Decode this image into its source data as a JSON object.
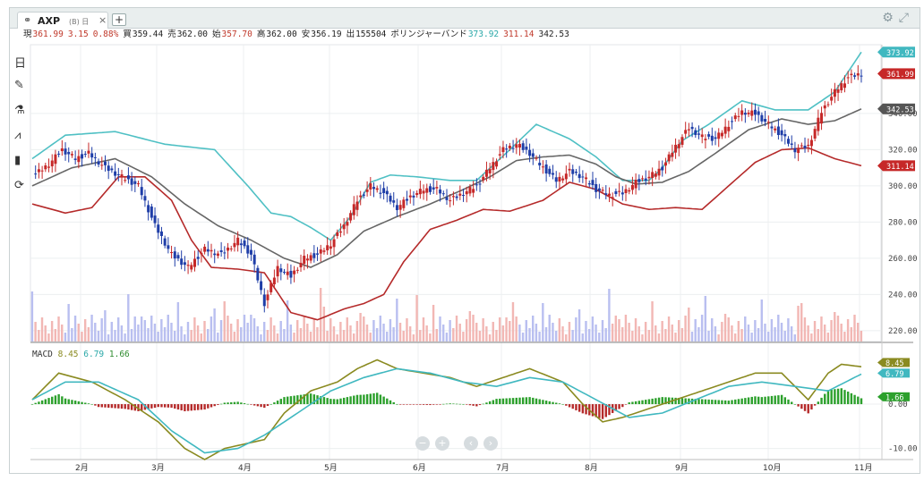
{
  "tab": {
    "symbol": "AXP",
    "suffix": "(B) 日",
    "close": "×",
    "add": "+"
  },
  "top_icons": {
    "settings": "gear-icon",
    "fullscreen": "expand-icon"
  },
  "infobar": [
    {
      "label": "現",
      "value": "361.99",
      "color": "red"
    },
    {
      "label": "",
      "value": "3.15",
      "color": "red"
    },
    {
      "label": "",
      "value": "0.88%",
      "color": "red"
    },
    {
      "label": "買",
      "value": "359.44",
      "color": ""
    },
    {
      "label": "売",
      "value": "362.00",
      "color": ""
    },
    {
      "label": "始",
      "value": "357.70",
      "color": "red"
    },
    {
      "label": "高",
      "value": "362.00",
      "color": ""
    },
    {
      "label": "安",
      "value": "356.19",
      "color": ""
    },
    {
      "label": "出",
      "value": "155504",
      "color": ""
    },
    {
      "label": "ボリンジャーバンド",
      "value": "373.92",
      "color": "teal"
    },
    {
      "label": "",
      "value": "311.14",
      "color": "red"
    },
    {
      "label": "",
      "value": "342.53",
      "color": ""
    }
  ],
  "toolbar": [
    {
      "name": "timeframe-icon",
      "glyph": "日"
    },
    {
      "name": "draw-icon",
      "glyph": "✎"
    },
    {
      "name": "indicator-flask-icon",
      "glyph": "⚗"
    },
    {
      "name": "chart-type-icon",
      "glyph": "⩘"
    },
    {
      "name": "bar-chart-icon",
      "glyph": "▮"
    },
    {
      "name": "refresh-icon",
      "glyph": "⟳"
    }
  ],
  "macd_label": {
    "name": "MACD",
    "v1": "8.45",
    "v2": "6.79",
    "v3": "1.66"
  },
  "nav": {
    "zoom_out": "−",
    "zoom_in": "+",
    "prev": "‹",
    "next": "›"
  },
  "chart_data": [
    {
      "type": "candlestick",
      "symbol": "AXP",
      "x_ticks": [
        "2月",
        "3月",
        "4月",
        "5月",
        "6月",
        "7月",
        "8月",
        "9月",
        "10月",
        "11月"
      ],
      "y_ticks": [
        220,
        240,
        260,
        280,
        300,
        320,
        340
      ],
      "ylim": [
        214,
        378
      ],
      "right_labels": [
        {
          "value": 373.92,
          "text": "373.92",
          "color": "#40b8c0"
        },
        {
          "value": 361.99,
          "text": "361.99",
          "color": "#c62828"
        },
        {
          "value": 342.53,
          "text": "342.53",
          "color": "#555555"
        },
        {
          "value": 311.14,
          "text": "311.14",
          "color": "#c62828"
        }
      ],
      "price_anchor": [
        [
          0,
          305
        ],
        [
          5,
          312
        ],
        [
          9,
          320
        ],
        [
          13,
          315
        ],
        [
          17,
          318
        ],
        [
          22,
          310
        ],
        [
          27,
          305
        ],
        [
          32,
          300
        ],
        [
          37,
          278
        ],
        [
          42,
          262
        ],
        [
          47,
          255
        ],
        [
          52,
          265
        ],
        [
          57,
          262
        ],
        [
          62,
          270
        ],
        [
          66,
          262
        ],
        [
          70,
          235
        ],
        [
          74,
          255
        ],
        [
          78,
          250
        ],
        [
          82,
          260
        ],
        [
          86,
          262
        ],
        [
          90,
          268
        ],
        [
          94,
          278
        ],
        [
          98,
          292
        ],
        [
          102,
          300
        ],
        [
          106,
          296
        ],
        [
          110,
          288
        ],
        [
          114,
          294
        ],
        [
          118,
          298
        ],
        [
          122,
          298
        ],
        [
          126,
          292
        ],
        [
          130,
          296
        ],
        [
          134,
          300
        ],
        [
          138,
          310
        ],
        [
          142,
          320
        ],
        [
          146,
          323
        ],
        [
          150,
          318
        ],
        [
          154,
          310
        ],
        [
          158,
          303
        ],
        [
          162,
          308
        ],
        [
          166,
          305
        ],
        [
          170,
          298
        ],
        [
          174,
          295
        ],
        [
          178,
          296
        ],
        [
          182,
          302
        ],
        [
          186,
          305
        ],
        [
          190,
          310
        ],
        [
          194,
          322
        ],
        [
          198,
          332
        ],
        [
          202,
          327
        ],
        [
          206,
          326
        ],
        [
          210,
          334
        ],
        [
          214,
          341
        ],
        [
          218,
          340
        ],
        [
          222,
          334
        ],
        [
          226,
          328
        ],
        [
          230,
          320
        ],
        [
          234,
          322
        ],
        [
          238,
          341
        ],
        [
          242,
          352
        ],
        [
          246,
          360
        ],
        [
          250,
          361.99
        ]
      ],
      "upper_band_anchor": [
        [
          0,
          315
        ],
        [
          10,
          328
        ],
        [
          25,
          330
        ],
        [
          40,
          323
        ],
        [
          55,
          320
        ],
        [
          65,
          300
        ],
        [
          72,
          285
        ],
        [
          78,
          283
        ],
        [
          84,
          277
        ],
        [
          90,
          270
        ],
        [
          96,
          283
        ],
        [
          102,
          302
        ],
        [
          108,
          306
        ],
        [
          116,
          305
        ],
        [
          126,
          303
        ],
        [
          134,
          303
        ],
        [
          144,
          320
        ],
        [
          152,
          334
        ],
        [
          162,
          326
        ],
        [
          170,
          316
        ],
        [
          178,
          303
        ],
        [
          186,
          303
        ],
        [
          190,
          310
        ],
        [
          196,
          325
        ],
        [
          204,
          334
        ],
        [
          214,
          347
        ],
        [
          224,
          342
        ],
        [
          234,
          342
        ],
        [
          242,
          352
        ],
        [
          250,
          373.92
        ]
      ],
      "middle_band_anchor": [
        [
          0,
          300
        ],
        [
          12,
          310
        ],
        [
          25,
          315
        ],
        [
          36,
          305
        ],
        [
          46,
          290
        ],
        [
          56,
          278
        ],
        [
          66,
          270
        ],
        [
          76,
          260
        ],
        [
          84,
          255
        ],
        [
          92,
          262
        ],
        [
          100,
          275
        ],
        [
          110,
          283
        ],
        [
          120,
          290
        ],
        [
          130,
          298
        ],
        [
          138,
          305
        ],
        [
          146,
          314
        ],
        [
          154,
          316
        ],
        [
          162,
          317
        ],
        [
          170,
          312
        ],
        [
          176,
          305
        ],
        [
          182,
          301
        ],
        [
          190,
          302
        ],
        [
          198,
          308
        ],
        [
          206,
          318
        ],
        [
          216,
          331
        ],
        [
          226,
          337
        ],
        [
          234,
          334
        ],
        [
          242,
          336
        ],
        [
          250,
          342.53
        ]
      ],
      "lower_band_anchor": [
        [
          0,
          290
        ],
        [
          10,
          285
        ],
        [
          18,
          288
        ],
        [
          26,
          305
        ],
        [
          34,
          305
        ],
        [
          42,
          292
        ],
        [
          48,
          270
        ],
        [
          54,
          255
        ],
        [
          62,
          254
        ],
        [
          70,
          252
        ],
        [
          78,
          230
        ],
        [
          86,
          226
        ],
        [
          94,
          232
        ],
        [
          100,
          235
        ],
        [
          106,
          240
        ],
        [
          112,
          258
        ],
        [
          120,
          276
        ],
        [
          128,
          281
        ],
        [
          136,
          287
        ],
        [
          144,
          286
        ],
        [
          154,
          292
        ],
        [
          162,
          302
        ],
        [
          170,
          298
        ],
        [
          178,
          290
        ],
        [
          186,
          287
        ],
        [
          194,
          288
        ],
        [
          202,
          287
        ],
        [
          210,
          300
        ],
        [
          218,
          313
        ],
        [
          226,
          320
        ],
        [
          234,
          321
        ],
        [
          242,
          315
        ],
        [
          250,
          311.14
        ]
      ],
      "volume_note": "volume bars along bottom, red and blue"
    },
    {
      "type": "macd",
      "series": [
        {
          "name": "MACD",
          "last": 8.45,
          "color": "#8a8a20"
        },
        {
          "name": "Signal",
          "last": 6.79,
          "color": "#40b8c0"
        },
        {
          "name": "Histogram",
          "last": 1.66,
          "color": "#2ca02c"
        }
      ],
      "y_ticks": [
        0.0,
        -10.0
      ],
      "ylim": [
        -12.5,
        10.5
      ],
      "macd_anchor": [
        [
          0,
          1
        ],
        [
          8,
          7
        ],
        [
          18,
          5
        ],
        [
          28,
          1
        ],
        [
          38,
          -4
        ],
        [
          46,
          -10
        ],
        [
          52,
          -12.5
        ],
        [
          58,
          -10
        ],
        [
          64,
          -9
        ],
        [
          70,
          -8
        ],
        [
          76,
          -2
        ],
        [
          84,
          3
        ],
        [
          92,
          5
        ],
        [
          98,
          8
        ],
        [
          104,
          10
        ],
        [
          110,
          8
        ],
        [
          118,
          7
        ],
        [
          126,
          6
        ],
        [
          134,
          4
        ],
        [
          142,
          6
        ],
        [
          150,
          8
        ],
        [
          160,
          5
        ],
        [
          166,
          0
        ],
        [
          172,
          -4
        ],
        [
          178,
          -3
        ],
        [
          186,
          -1
        ],
        [
          194,
          1
        ],
        [
          202,
          3
        ],
        [
          210,
          5
        ],
        [
          218,
          7
        ],
        [
          226,
          7
        ],
        [
          234,
          1
        ],
        [
          240,
          7
        ],
        [
          244,
          9
        ],
        [
          250,
          8.45
        ]
      ],
      "signal_anchor": [
        [
          0,
          1
        ],
        [
          10,
          5
        ],
        [
          20,
          5
        ],
        [
          32,
          1
        ],
        [
          42,
          -6
        ],
        [
          52,
          -11
        ],
        [
          62,
          -10
        ],
        [
          70,
          -7
        ],
        [
          80,
          -2
        ],
        [
          90,
          3
        ],
        [
          100,
          6
        ],
        [
          110,
          8
        ],
        [
          120,
          7
        ],
        [
          130,
          5
        ],
        [
          140,
          4
        ],
        [
          150,
          6
        ],
        [
          160,
          5
        ],
        [
          170,
          1
        ],
        [
          180,
          -3
        ],
        [
          190,
          -2
        ],
        [
          200,
          1
        ],
        [
          210,
          4
        ],
        [
          220,
          5
        ],
        [
          230,
          4
        ],
        [
          240,
          3
        ],
        [
          250,
          6.79
        ]
      ]
    }
  ]
}
